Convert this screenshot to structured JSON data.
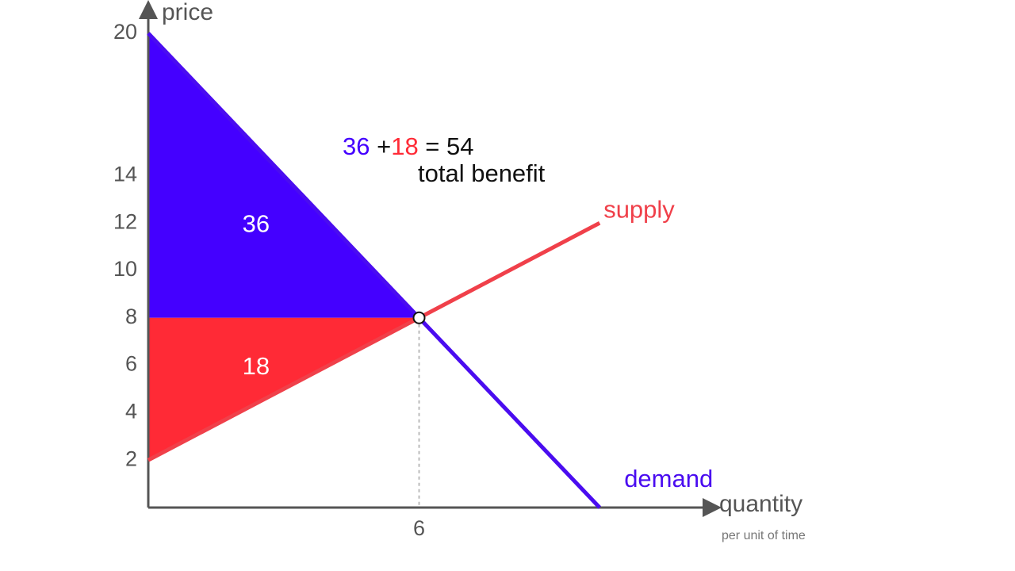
{
  "chart_data": {
    "type": "line",
    "y_label": "price",
    "x_label": "quantity",
    "x_sublabel": "per unit of time",
    "xlim": [
      0,
      12.5
    ],
    "ylim": [
      0,
      20.8
    ],
    "xticks": [
      6
    ],
    "yticks": [
      2,
      4,
      6,
      8,
      10,
      12,
      14,
      20
    ],
    "series": [
      {
        "name": "demand",
        "color": "#4a0cf0",
        "x": [
          0,
          10
        ],
        "values": [
          20,
          0
        ]
      },
      {
        "name": "supply",
        "color": "#f0404a",
        "x": [
          0,
          10
        ],
        "values": [
          2,
          12
        ]
      }
    ],
    "areas": [
      {
        "value": 36,
        "color": "#4400ff",
        "x": [
          0,
          6,
          0
        ],
        "y": [
          20,
          8,
          8
        ]
      },
      {
        "value": 18,
        "color": "#ff2a36",
        "x": [
          0,
          6,
          0
        ],
        "y": [
          8,
          8,
          2
        ]
      }
    ],
    "equilibrium": {
      "x": 6,
      "y": 8
    },
    "equation": [
      {
        "text": "36",
        "color": "#4400ff"
      },
      {
        "text": " +",
        "color": "#111111"
      },
      {
        "text": "18",
        "color": "#ff2a36"
      },
      {
        "text": " = 54",
        "color": "#111111"
      }
    ],
    "equation_caption": "total benefit"
  }
}
